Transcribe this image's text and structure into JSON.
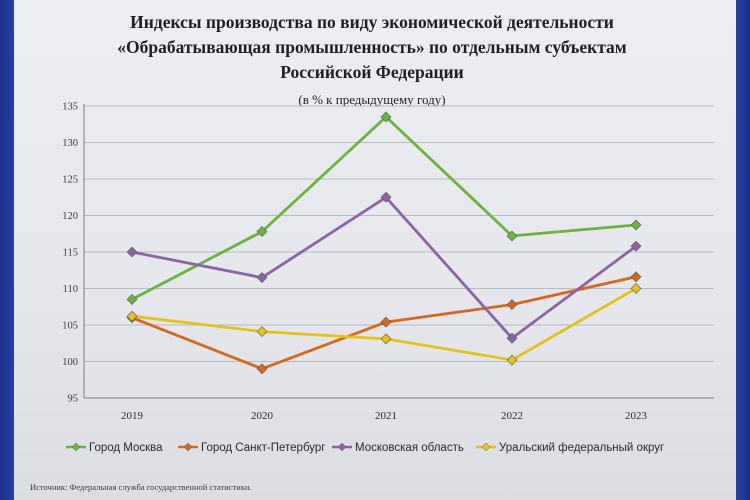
{
  "source_note": "Источник: Федеральная служба государственной статистики.",
  "chart_data": {
    "type": "line",
    "title_lines": [
      "Индексы производства по виду экономической деятельности",
      "«Обрабатывающая промышленность» по отдельным  субъектам",
      "Российской Федерации"
    ],
    "subtitle": "(в % к предыдущему году)",
    "xlabel": "",
    "ylabel": "",
    "categories": [
      "2019",
      "2020",
      "2021",
      "2022",
      "2023"
    ],
    "yticks": [
      95,
      100,
      105,
      110,
      115,
      120,
      125,
      130,
      135
    ],
    "ylim": [
      95,
      135
    ],
    "grid": true,
    "legend_position": "bottom",
    "series": [
      {
        "name": "Город Москва",
        "color": "#6cb33f",
        "values": [
          108.5,
          117.8,
          133.5,
          117.2,
          118.7
        ]
      },
      {
        "name": "Город Санкт-Петербург",
        "color": "#d2691e",
        "values": [
          106.0,
          99.0,
          105.4,
          107.8,
          111.6
        ]
      },
      {
        "name": "Московская область",
        "color": "#8e63a6",
        "values": [
          115.0,
          111.5,
          122.5,
          103.2,
          115.8
        ]
      },
      {
        "name": "Уральский федеральный округ",
        "color": "#e3c21f",
        "values": [
          106.2,
          104.1,
          103.1,
          100.2,
          110.0
        ]
      }
    ]
  }
}
